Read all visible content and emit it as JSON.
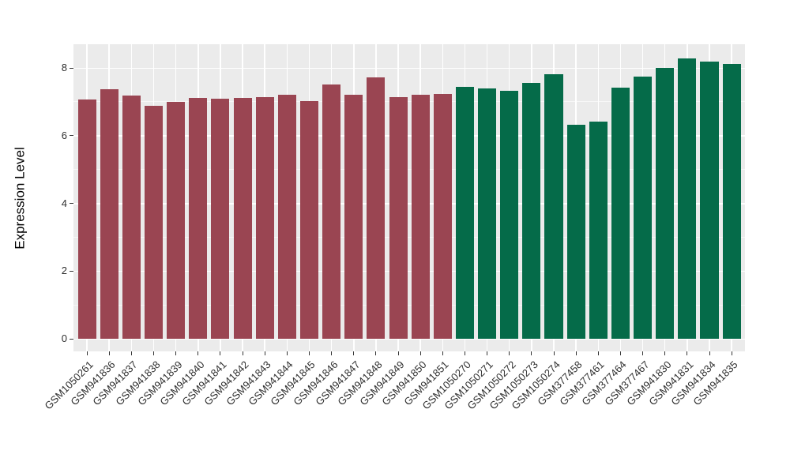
{
  "figure": {
    "background": "#FFFFFF",
    "panel_background": "#EBEBEB",
    "grid_color": "#FFFFFF",
    "axis_text_color": "#2E2E2E",
    "tick_mark_color": "#333333"
  },
  "chart_data": {
    "type": "bar",
    "title": "",
    "xlabel": "",
    "ylabel": "Expression Level",
    "ylim": [
      0,
      8.66
    ],
    "yticks": [
      0,
      2,
      4,
      6,
      8
    ],
    "minor_yticks": [
      1,
      3,
      5,
      7
    ],
    "grid": true,
    "legend": "none",
    "categories": [
      "GSM1050261",
      "GSM941836",
      "GSM941837",
      "GSM941838",
      "GSM941839",
      "GSM941840",
      "GSM941841",
      "GSM941842",
      "GSM941843",
      "GSM941844",
      "GSM941845",
      "GSM941846",
      "GSM941847",
      "GSM941848",
      "GSM941849",
      "GSM941850",
      "GSM941851",
      "GSM1050270",
      "GSM1050271",
      "GSM1050272",
      "GSM1050273",
      "GSM1050274",
      "GSM377458",
      "GSM377461",
      "GSM377464",
      "GSM377467",
      "GSM941830",
      "GSM941831",
      "GSM941834",
      "GSM941835"
    ],
    "values": [
      7.05,
      7.35,
      7.18,
      6.88,
      6.98,
      7.1,
      7.08,
      7.1,
      7.13,
      7.2,
      7.02,
      7.5,
      7.2,
      7.7,
      7.12,
      7.2,
      7.23,
      7.44,
      7.38,
      7.32,
      7.55,
      7.8,
      6.32,
      6.4,
      7.41,
      7.73,
      7.98,
      8.28,
      8.18,
      8.1
    ],
    "bar_groups": [
      0,
      0,
      0,
      0,
      0,
      0,
      0,
      0,
      0,
      0,
      0,
      0,
      0,
      0,
      0,
      0,
      0,
      1,
      1,
      1,
      1,
      1,
      1,
      1,
      1,
      1,
      1,
      1,
      1,
      1
    ],
    "group_colors": [
      "#9A4552",
      "#056B49"
    ]
  }
}
